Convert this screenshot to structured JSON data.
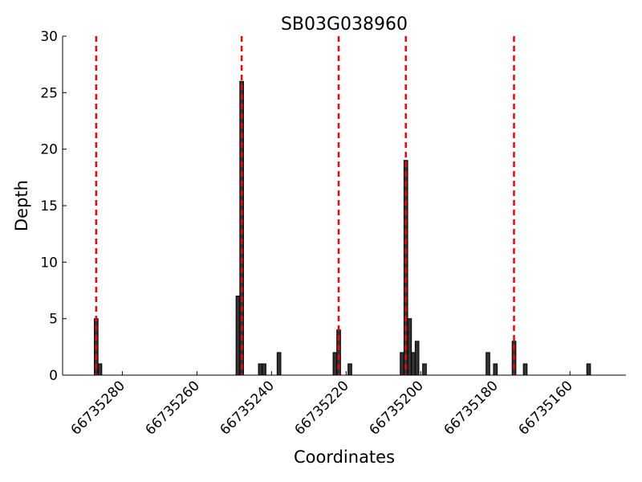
{
  "chart_data": {
    "type": "bar",
    "title": "SB03G038960",
    "x_label": "Coordinates",
    "y_label": "Depth",
    "x": [
      66735287,
      66735286,
      66735249,
      66735248,
      66735243,
      66735242,
      66735238,
      66735223,
      66735222,
      66735219,
      66735205,
      66735204,
      66735203,
      66735202,
      66735201,
      66735199,
      66735182,
      66735180,
      66735175,
      66735172,
      66735155
    ],
    "values": [
      5,
      1,
      7,
      26,
      1,
      1,
      2,
      2,
      4,
      1,
      2,
      19,
      5,
      2,
      3,
      1,
      2,
      1,
      3,
      1,
      1
    ],
    "color": "#333333",
    "vlines": [
      66735287,
      66735248,
      66735222,
      66735204,
      66735175
    ],
    "vline_color": "#ff0000",
    "xlim": [
      66735296,
      66735145
    ],
    "xticks": [
      66735280,
      66735260,
      66735240,
      66735220,
      66735200,
      66735180,
      66735160
    ],
    "ylim": [
      0,
      30
    ],
    "yticks": [
      0,
      5,
      10,
      15,
      20,
      25,
      30
    ],
    "grid": false
  }
}
